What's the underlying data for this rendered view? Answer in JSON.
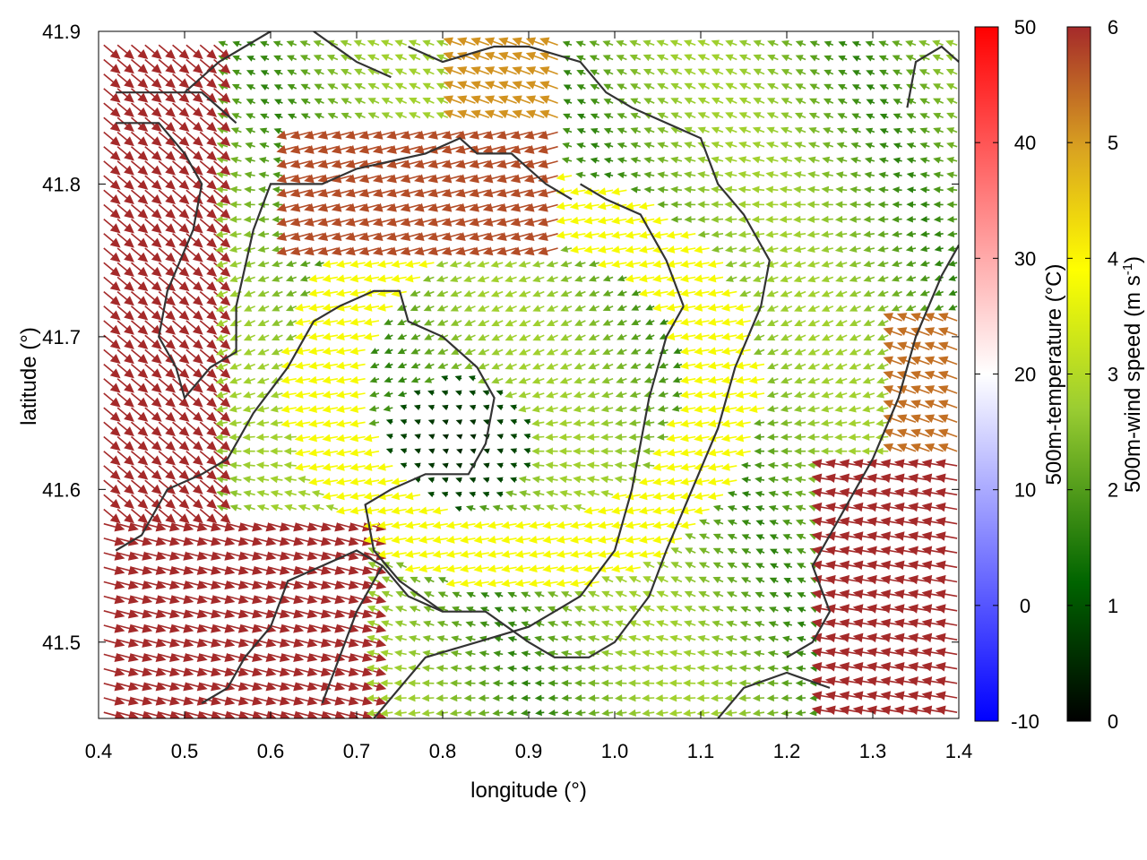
{
  "chart_data": {
    "type": "vector-field",
    "xlabel": "longitude (°)",
    "ylabel": "latitude (°)",
    "xlim": [
      0.4,
      1.4
    ],
    "ylim": [
      41.45,
      41.9
    ],
    "xticks": [
      "0.4",
      "0.5",
      "0.6",
      "0.7",
      "0.8",
      "0.9",
      "1.0",
      "1.1",
      "1.2",
      "1.3",
      "1.4"
    ],
    "yticks": [
      "41.5",
      "41.6",
      "41.7",
      "41.8",
      "41.9"
    ],
    "grid": false,
    "vector_color_scale": {
      "label_main": "500m-wind speed (m s",
      "label_sup": "-1",
      "label_end": ")",
      "range": [
        0,
        6
      ],
      "ticks": [
        "0",
        "1",
        "2",
        "3",
        "4",
        "5",
        "6"
      ],
      "colors": [
        "#000000",
        "#006400",
        "#9acd32",
        "#ffff00",
        "#daa520",
        "#a52a2a"
      ]
    },
    "background_color_scale": {
      "label": "500m-temperature (°C)",
      "range": [
        -10,
        50
      ],
      "ticks": [
        "-10",
        "0",
        "10",
        "20",
        "30",
        "40",
        "50"
      ],
      "colors": [
        "#0000ff",
        "#ffffff",
        "#ff0000"
      ]
    },
    "contour_lines": [
      [
        [
          0.42,
          41.86
        ],
        [
          0.52,
          41.86
        ],
        [
          0.54,
          41.85
        ],
        [
          0.56,
          41.84
        ]
      ],
      [
        [
          0.42,
          41.84
        ],
        [
          0.47,
          41.84
        ],
        [
          0.5,
          41.82
        ],
        [
          0.52,
          41.8
        ],
        [
          0.51,
          41.77
        ],
        [
          0.48,
          41.73
        ],
        [
          0.47,
          41.7
        ],
        [
          0.49,
          41.68
        ],
        [
          0.5,
          41.66
        ],
        [
          0.53,
          41.68
        ],
        [
          0.56,
          41.69
        ],
        [
          0.56,
          41.72
        ],
        [
          0.58,
          41.77
        ],
        [
          0.6,
          41.8
        ],
        [
          0.62,
          41.8
        ],
        [
          0.66,
          41.8
        ],
        [
          0.7,
          41.81
        ],
        [
          0.78,
          41.82
        ],
        [
          0.82,
          41.83
        ],
        [
          0.84,
          41.82
        ],
        [
          0.88,
          41.82
        ],
        [
          0.9,
          41.81
        ],
        [
          0.92,
          41.8
        ],
        [
          0.95,
          41.79
        ]
      ],
      [
        [
          0.42,
          41.56
        ],
        [
          0.45,
          41.57
        ],
        [
          0.48,
          41.6
        ],
        [
          0.52,
          41.61
        ],
        [
          0.55,
          41.62
        ],
        [
          0.58,
          41.65
        ],
        [
          0.62,
          41.68
        ],
        [
          0.65,
          41.71
        ],
        [
          0.68,
          41.72
        ],
        [
          0.72,
          41.73
        ],
        [
          0.75,
          41.73
        ],
        [
          0.76,
          41.71
        ],
        [
          0.8,
          41.7
        ],
        [
          0.84,
          41.68
        ],
        [
          0.86,
          41.66
        ],
        [
          0.85,
          41.63
        ],
        [
          0.83,
          41.61
        ],
        [
          0.78,
          41.61
        ],
        [
          0.74,
          41.6
        ],
        [
          0.71,
          41.59
        ],
        [
          0.72,
          41.56
        ],
        [
          0.75,
          41.54
        ],
        [
          0.8,
          41.52
        ],
        [
          0.85,
          41.52
        ],
        [
          0.9,
          41.5
        ],
        [
          0.93,
          41.49
        ],
        [
          0.97,
          41.49
        ],
        [
          1.0,
          41.5
        ],
        [
          1.04,
          41.53
        ],
        [
          1.06,
          41.56
        ],
        [
          1.09,
          41.6
        ],
        [
          1.12,
          41.64
        ],
        [
          1.14,
          41.68
        ],
        [
          1.17,
          41.72
        ],
        [
          1.18,
          41.75
        ],
        [
          1.15,
          41.78
        ],
        [
          1.12,
          41.8
        ],
        [
          1.1,
          41.83
        ],
        [
          1.06,
          41.84
        ],
        [
          1.02,
          41.85
        ],
        [
          0.99,
          41.86
        ],
        [
          0.96,
          41.88
        ],
        [
          0.9,
          41.89
        ],
        [
          0.86,
          41.89
        ],
        [
          0.8,
          41.88
        ],
        [
          0.76,
          41.89
        ]
      ],
      [
        [
          0.52,
          41.46
        ],
        [
          0.55,
          41.47
        ],
        [
          0.57,
          41.49
        ],
        [
          0.6,
          41.51
        ],
        [
          0.62,
          41.54
        ],
        [
          0.66,
          41.55
        ],
        [
          0.7,
          41.56
        ],
        [
          0.73,
          41.55
        ],
        [
          0.76,
          41.53
        ],
        [
          0.8,
          41.52
        ]
      ],
      [
        [
          0.66,
          41.46
        ],
        [
          0.7,
          41.52
        ],
        [
          0.73,
          41.55
        ]
      ],
      [
        [
          0.72,
          41.45
        ],
        [
          0.78,
          41.49
        ],
        [
          0.84,
          41.5
        ],
        [
          0.9,
          41.51
        ],
        [
          0.96,
          41.53
        ],
        [
          1.0,
          41.56
        ],
        [
          1.02,
          41.6
        ],
        [
          1.04,
          41.66
        ],
        [
          1.06,
          41.7
        ],
        [
          1.08,
          41.72
        ]
      ],
      [
        [
          1.08,
          41.72
        ],
        [
          1.06,
          41.75
        ],
        [
          1.03,
          41.78
        ],
        [
          0.99,
          41.79
        ],
        [
          0.96,
          41.8
        ]
      ],
      [
        [
          1.12,
          41.45
        ],
        [
          1.15,
          41.47
        ],
        [
          1.2,
          41.48
        ],
        [
          1.25,
          41.47
        ]
      ],
      [
        [
          1.2,
          41.49
        ],
        [
          1.23,
          41.5
        ],
        [
          1.25,
          41.52
        ],
        [
          1.23,
          41.55
        ],
        [
          1.26,
          41.58
        ],
        [
          1.3,
          41.62
        ],
        [
          1.33,
          41.66
        ],
        [
          1.35,
          41.7
        ],
        [
          1.38,
          41.74
        ],
        [
          1.4,
          41.76
        ]
      ],
      [
        [
          1.34,
          41.85
        ],
        [
          1.35,
          41.88
        ],
        [
          1.38,
          41.89
        ],
        [
          1.4,
          41.88
        ]
      ],
      [
        [
          0.65,
          41.9
        ],
        [
          0.7,
          41.88
        ],
        [
          0.74,
          41.87
        ]
      ],
      [
        [
          0.5,
          41.86
        ],
        [
          0.54,
          41.88
        ],
        [
          0.6,
          41.9
        ]
      ]
    ]
  }
}
